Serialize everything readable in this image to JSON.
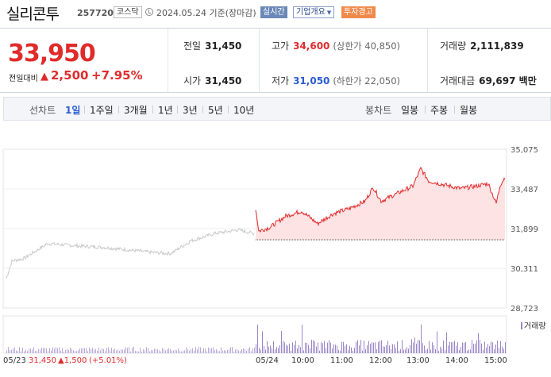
{
  "header": {
    "stock_name": "실리콘투",
    "stock_code": "257720",
    "market": "코스닥",
    "date_text": "2024.05.24 기준(장마감)",
    "realtime_label": "실시간",
    "company_label": "기업개요",
    "company_arrow": "▼",
    "warning_label": "투자경고"
  },
  "quote": {
    "price": "33,950",
    "change_label": "전일대비",
    "change_triangle": "▲",
    "change_value": "2,500",
    "change_rate": "+7.95%",
    "prev_close_label": "전일",
    "prev_close": "31,450",
    "open_label": "시가",
    "open": "31,450",
    "high_label": "고가",
    "high": "34,600",
    "upper_limit": "(상한가 40,850)",
    "low_label": "저가",
    "low": "31,050",
    "lower_limit": "(하한가 22,050)",
    "volume_label": "거래량",
    "volume": "2,111,839",
    "amount_label": "거래대금",
    "amount": "69,697 백만"
  },
  "toolbar": {
    "line_label": "선차트",
    "line_periods": [
      "1일",
      "1주일",
      "3개월",
      "1년",
      "3년",
      "5년",
      "10년"
    ],
    "candle_label": "봉차트",
    "candle_periods": [
      "일봉",
      "주봉",
      "월봉"
    ]
  },
  "chart_data": {
    "type": "line",
    "y_ticks": [
      "35,075",
      "33,487",
      "31,899",
      "30,311",
      "28,723"
    ],
    "ylim": [
      28723,
      35075
    ],
    "baseline": 31450,
    "x_ticks": [
      "05/24",
      "10:00",
      "11:00",
      "12:00",
      "13:00",
      "14:00",
      "15:00"
    ],
    "volume_label": "거래량",
    "prev_day_label": "05/23",
    "prev_day_close": "31,450",
    "prev_day_change": "▲1,500",
    "prev_day_rate": "(+5.01%)",
    "prev_day_series_color": "#c8c8c8",
    "today_series_color": "#e02b2b",
    "fill_color": "#fde3e3",
    "volume_color": "#9a86c9"
  }
}
